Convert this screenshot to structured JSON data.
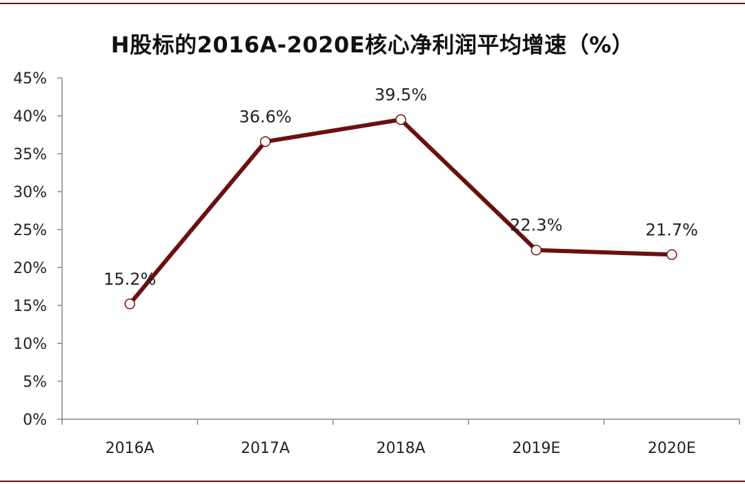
{
  "colors": {
    "line": "#6b0f10",
    "marker_fill": "#ffffff",
    "axis": "#888888",
    "frame_rule": "#6b0f10"
  },
  "chart_data": {
    "type": "line",
    "title": "H股标的2016A-2020E核心净利润平均增速（%）",
    "xlabel": "",
    "ylabel": "",
    "categories": [
      "2016A",
      "2017A",
      "2018A",
      "2019E",
      "2020E"
    ],
    "series": [
      {
        "values": [
          15.2,
          36.6,
          39.5,
          22.3,
          21.7
        ],
        "data_labels": [
          "15.2%",
          "36.6%",
          "39.5%",
          "22.3%",
          "21.7%"
        ]
      }
    ],
    "ylim": [
      0,
      45
    ],
    "yticks": [
      0,
      5,
      10,
      15,
      20,
      25,
      30,
      35,
      40,
      45
    ],
    "ytick_labels": [
      "0%",
      "5%",
      "10%",
      "15%",
      "20%",
      "25%",
      "30%",
      "35%",
      "40%",
      "45%"
    ],
    "grid": false,
    "legend": "none",
    "marker": "hollow-circle"
  }
}
